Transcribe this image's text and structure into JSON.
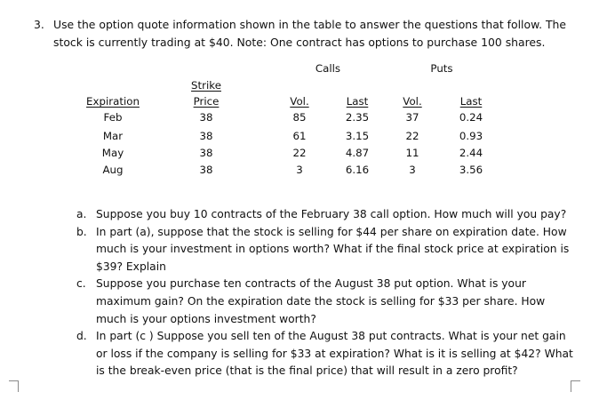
{
  "question": {
    "number": "3.",
    "text": "Use the option quote information shown in the table to answer the questions that follow. The stock is currently trading at $40. Note: One contract has options to purchase 100 shares."
  },
  "table": {
    "group_calls": "Calls",
    "group_puts": "Puts",
    "headers": {
      "expiration": "Expiration",
      "strike_line1": "Strike",
      "strike_line2": "Price",
      "call_vol": "Vol.",
      "call_last": "Last",
      "put_vol": "Vol.",
      "put_last": "Last"
    },
    "rows": [
      {
        "expiration": "Feb",
        "strike": "38",
        "call_vol": "85",
        "call_last": "2.35",
        "put_vol": "37",
        "put_last": "0.24"
      },
      {
        "expiration": "Mar",
        "strike": "38",
        "call_vol": "61",
        "call_last": "3.15",
        "put_vol": "22",
        "put_last": "0.93"
      },
      {
        "expiration": "May",
        "strike": "38",
        "call_vol": "22",
        "call_last": "4.87",
        "put_vol": "11",
        "put_last": "2.44"
      },
      {
        "expiration": "Aug",
        "strike": "38",
        "call_vol": "3",
        "call_last": "6.16",
        "put_vol": "3",
        "put_last": "3.56"
      }
    ]
  },
  "subquestions": [
    {
      "letter": "a.",
      "text": "Suppose you buy 10 contracts of the February 38 call option. How much will you pay?"
    },
    {
      "letter": "b.",
      "text": "In part (a), suppose that the stock is selling for $44 per share on expiration date. How much is your investment in options worth? What if the final stock price at expiration is $39? Explain"
    },
    {
      "letter": "c.",
      "text": "Suppose you purchase ten contracts of the August 38 put option. What is your maximum gain? On the expiration date the stock is selling for $33 per share. How much is your options investment worth?"
    },
    {
      "letter": "d.",
      "text": "In part (c ) Suppose you sell ten of the August 38 put contracts. What is your net gain or loss if the company is selling for $33 at expiration? What is it is selling at $42? What is the break-even price (that is the final price) that will result in a zero profit?"
    }
  ]
}
